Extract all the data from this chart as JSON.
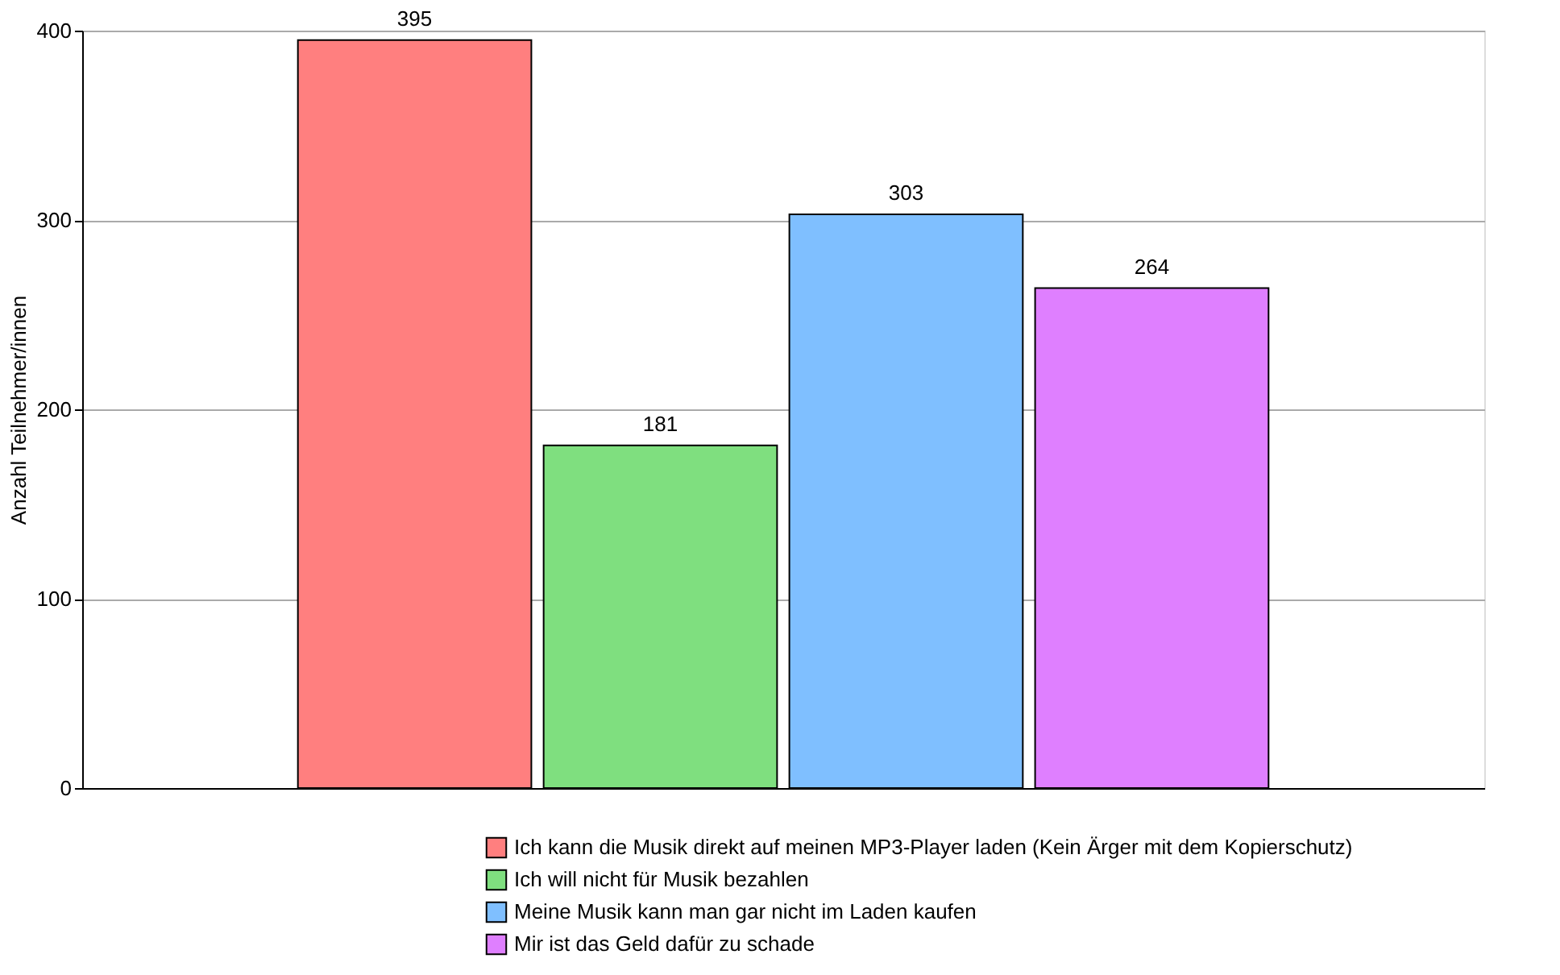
{
  "chart_data": {
    "type": "bar",
    "ylabel": "Anzahl Teilnehmer/innen",
    "categories": [
      null
    ],
    "series": [
      {
        "name": "Ich kann die Musik direkt auf meinen MP3-Player laden (Kein Ärger mit dem Kopierschutz)",
        "color": "#ff7f7f",
        "values": [
          395
        ]
      },
      {
        "name": "Ich will nicht für Musik bezahlen",
        "color": "#7fdf7f",
        "values": [
          181
        ]
      },
      {
        "name": "Meine Musik kann man gar nicht im Laden kaufen",
        "color": "#7fbfff",
        "values": [
          303
        ]
      },
      {
        "name": "Mir ist das Geld dafür zu schade",
        "color": "#df7fff",
        "values": [
          264
        ]
      }
    ],
    "ylim": [
      0,
      400
    ],
    "yticks": [
      0,
      100,
      200,
      300,
      400
    ],
    "grid": "y",
    "data_labels": true,
    "legend": "bottom right"
  }
}
